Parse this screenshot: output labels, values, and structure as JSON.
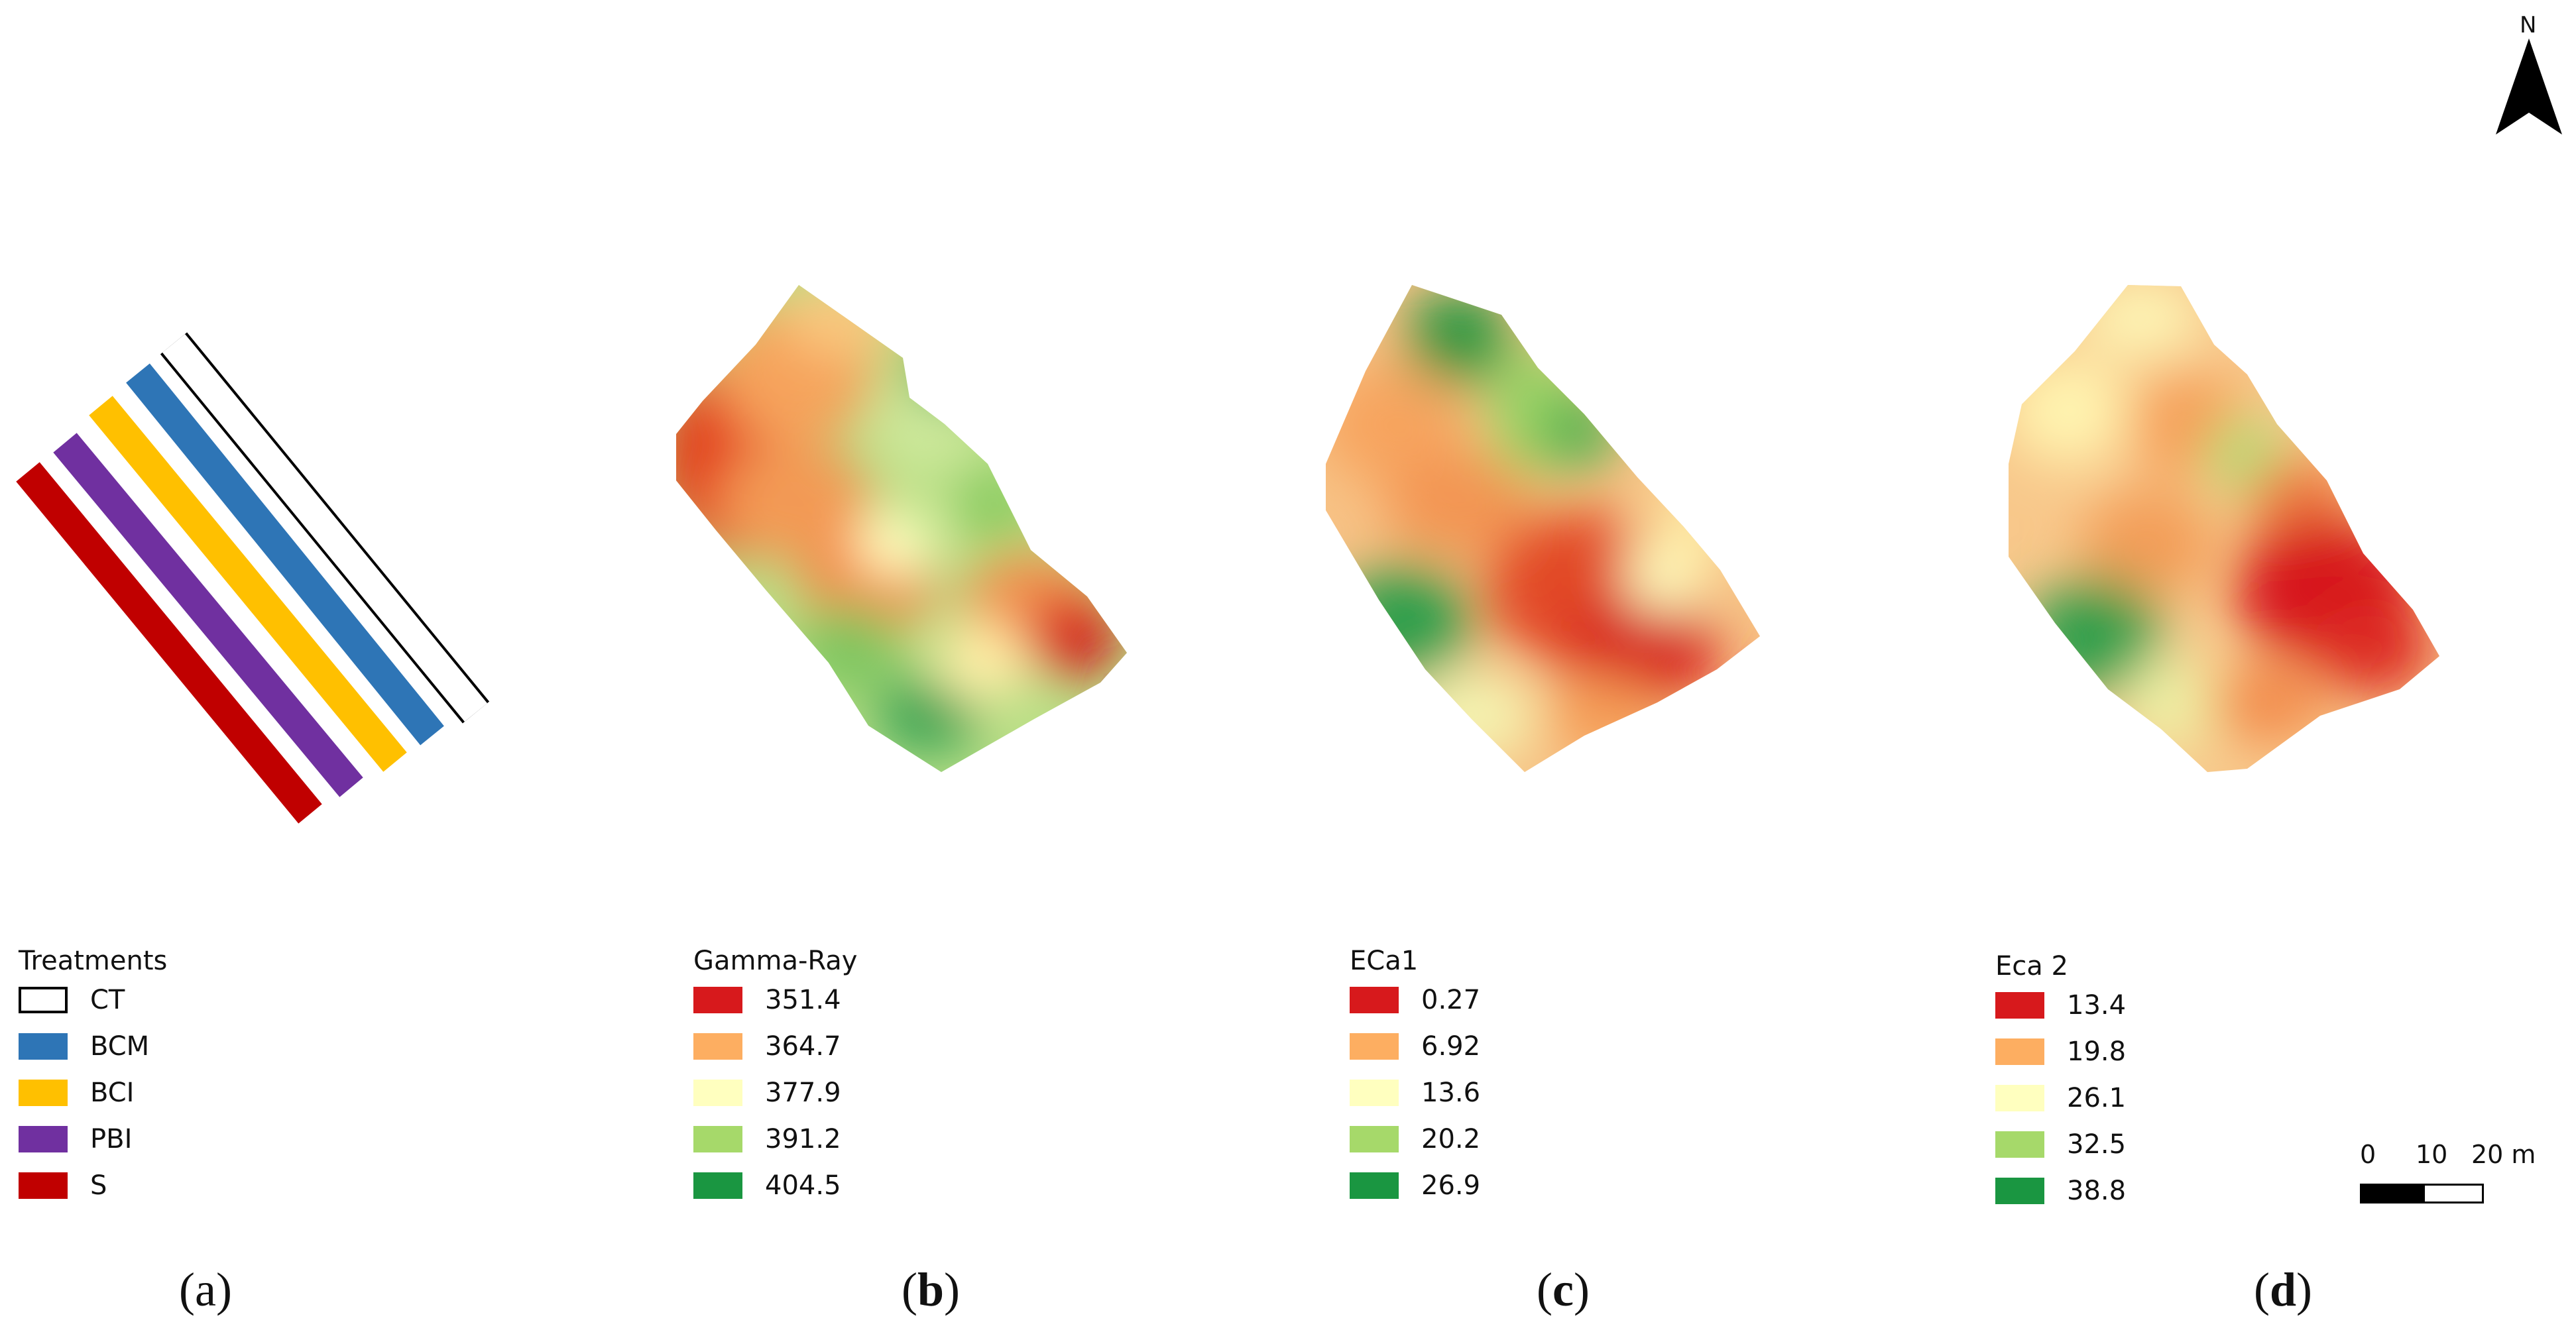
{
  "figure": {
    "north_label": "N",
    "north_icon": "north-arrow-icon"
  },
  "panels": [
    {
      "id": "a",
      "label_open": "(",
      "label_letter": "a",
      "label_close": ")",
      "legend": {
        "title": "Treatments",
        "items": [
          {
            "label": "CT",
            "color": "#ffffff",
            "outline": "#000000"
          },
          {
            "label": "BCM",
            "color": "#2e75b6"
          },
          {
            "label": "BCI",
            "color": "#ffc000"
          },
          {
            "label": "PBI",
            "color": "#7030a0"
          },
          {
            "label": "S",
            "color": "#c00000"
          }
        ]
      }
    },
    {
      "id": "b",
      "label_open": "(",
      "label_letter": "b",
      "label_close": ")",
      "legend": {
        "title": "Gamma-Ray",
        "items": [
          {
            "label": "351.4",
            "color": "#d7191c"
          },
          {
            "label": "364.7",
            "color": "#fdae61"
          },
          {
            "label": "377.9",
            "color": "#ffffbf"
          },
          {
            "label": "391.2",
            "color": "#a6d96a"
          },
          {
            "label": "404.5",
            "color": "#1a9641"
          }
        ]
      }
    },
    {
      "id": "c",
      "label_open": "(",
      "label_letter": "c",
      "label_close": ")",
      "legend": {
        "title": "ECa1",
        "items": [
          {
            "label": "0.27",
            "color": "#d7191c"
          },
          {
            "label": "6.92",
            "color": "#fdae61"
          },
          {
            "label": "13.6",
            "color": "#ffffbf"
          },
          {
            "label": "20.2",
            "color": "#a6d96a"
          },
          {
            "label": "26.9",
            "color": "#1a9641"
          }
        ]
      }
    },
    {
      "id": "d",
      "label_open": "(",
      "label_letter": "d",
      "label_close": ")",
      "legend": {
        "title": "Eca 2",
        "items": [
          {
            "label": "13.4",
            "color": "#d7191c"
          },
          {
            "label": "19.8",
            "color": "#fdae61"
          },
          {
            "label": "26.1",
            "color": "#ffffbf"
          },
          {
            "label": "32.5",
            "color": "#a6d96a"
          },
          {
            "label": "38.8",
            "color": "#1a9641"
          }
        ]
      }
    }
  ],
  "scale_bar": {
    "ticks": [
      "0",
      "10",
      "20 m"
    ]
  }
}
